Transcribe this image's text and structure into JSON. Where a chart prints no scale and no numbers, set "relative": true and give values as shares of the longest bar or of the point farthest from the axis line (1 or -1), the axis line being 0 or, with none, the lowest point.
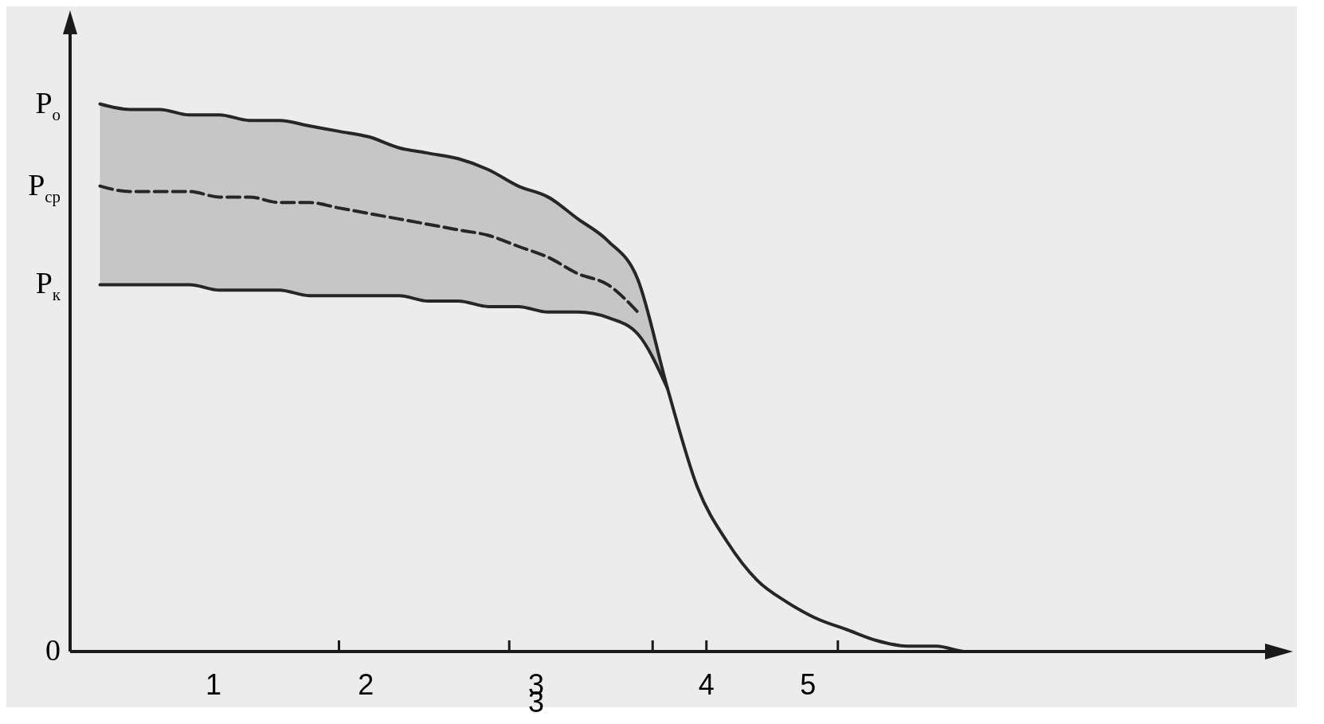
{
  "chart_data": {
    "type": "line",
    "relative": true,
    "marker": "none",
    "categories": [
      null,
      null,
      null,
      null,
      null,
      null,
      null,
      null,
      null,
      null,
      null,
      null,
      null,
      null,
      null,
      null,
      null,
      null,
      null,
      null,
      null,
      null,
      null,
      null,
      null,
      null,
      null,
      null,
      null,
      null,
      null
    ],
    "series": [
      {
        "color": "#262626",
        "line_style": "solid",
        "values": [
          1.0,
          0.99,
          0.99,
          0.98,
          0.98,
          0.97,
          0.97,
          0.96,
          0.95,
          0.94,
          0.92,
          0.91,
          0.9,
          0.88,
          0.85,
          0.83,
          0.79,
          0.75,
          0.68,
          0.48,
          0.3,
          0.2,
          0.13,
          0.09,
          0.06,
          0.04,
          0.02,
          0.01,
          0.01,
          0.0,
          0.0
        ]
      },
      {
        "color": "#262626",
        "line_style": "solid",
        "values": [
          0.67,
          0.67,
          0.67,
          0.67,
          0.66,
          0.66,
          0.66,
          0.65,
          0.65,
          0.65,
          0.65,
          0.64,
          0.64,
          0.63,
          0.63,
          0.62,
          0.62,
          0.61,
          0.58,
          0.48,
          null,
          null,
          null,
          null,
          null,
          null,
          null,
          null,
          null,
          null,
          null
        ]
      },
      {
        "color": "#262626",
        "line_style": "dashed",
        "values": [
          0.85,
          0.84,
          0.84,
          0.84,
          0.83,
          0.83,
          0.82,
          0.82,
          0.81,
          0.8,
          0.79,
          0.78,
          0.77,
          0.76,
          0.74,
          0.72,
          0.69,
          0.67,
          0.62,
          null,
          null,
          null,
          null,
          null,
          null,
          null,
          null,
          null,
          null,
          null,
          null
        ],
        "lower": [
          0.67,
          0.67,
          0.67,
          0.67,
          0.66,
          0.66,
          0.66,
          0.65,
          0.65,
          0.65,
          0.65,
          0.64,
          0.64,
          0.63,
          0.63,
          0.62,
          0.62,
          0.61,
          0.58,
          0.48,
          null,
          null,
          null,
          null,
          null,
          null,
          null,
          null,
          null,
          null,
          null
        ],
        "upper": [
          1.0,
          0.99,
          0.99,
          0.98,
          0.98,
          0.97,
          0.97,
          0.96,
          0.95,
          0.94,
          0.92,
          0.91,
          0.9,
          0.88,
          0.85,
          0.83,
          0.79,
          0.75,
          0.68,
          0.48,
          null,
          null,
          null,
          null,
          null,
          null,
          null,
          null,
          null,
          null,
          null
        ]
      }
    ],
    "annotations": [
      "P$_{о}$",
      "P$_{ср}$",
      "P$_{к}$",
      "0",
      "1",
      "2",
      "3",
      "3",
      "4",
      "5"
    ]
  }
}
